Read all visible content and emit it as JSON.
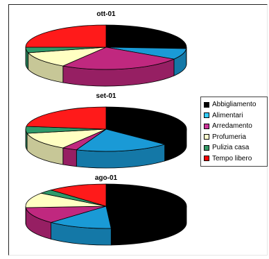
{
  "chart_data": [
    {
      "type": "pie",
      "title": "ott-01",
      "categories": [
        "Abbigliamento",
        "Alimentari",
        "Arredamento",
        "Profumeria",
        "Pulizia casa",
        "Tempo libero"
      ],
      "values": [
        26,
        8,
        25,
        12,
        4,
        25
      ]
    },
    {
      "type": "pie",
      "title": "set-01",
      "categories": [
        "Abbigliamento",
        "Alimentari",
        "Arredamento",
        "Profumeria",
        "Pulizia casa",
        "Tempo libero"
      ],
      "values": [
        37,
        19,
        3,
        13,
        5,
        23
      ]
    },
    {
      "type": "pie",
      "title": "ago-01",
      "categories": [
        "Abbigliamento",
        "Alimentari",
        "Arredamento",
        "Profumeria",
        "Pulizia casa",
        "Tempo libero"
      ],
      "values": [
        49,
        13,
        12,
        11,
        3,
        12
      ]
    }
  ],
  "legend": {
    "position": "right",
    "items": [
      {
        "label": "Abbigliamento",
        "color": "#000000"
      },
      {
        "label": "Alimentari",
        "color": "#33ccff"
      },
      {
        "label": "Arredamento",
        "color": "#cc3399"
      },
      {
        "label": "Profumeria",
        "color": "#ffffcc"
      },
      {
        "label": "Pulizia casa",
        "color": "#339966"
      },
      {
        "label": "Tempo libero",
        "color": "#ff0000"
      }
    ]
  },
  "colors": {
    "Abbigliamento": "#000000",
    "Alimentari": "#1a9ad6",
    "Arredamento": "#c0287f",
    "Profumeria": "#ffffc2",
    "Pulizia casa": "#2f9a6a",
    "Tempo libero": "#ff1a1a"
  },
  "style": {
    "view": "3d",
    "clockwise": true,
    "start_angle": "12 o'clock"
  }
}
